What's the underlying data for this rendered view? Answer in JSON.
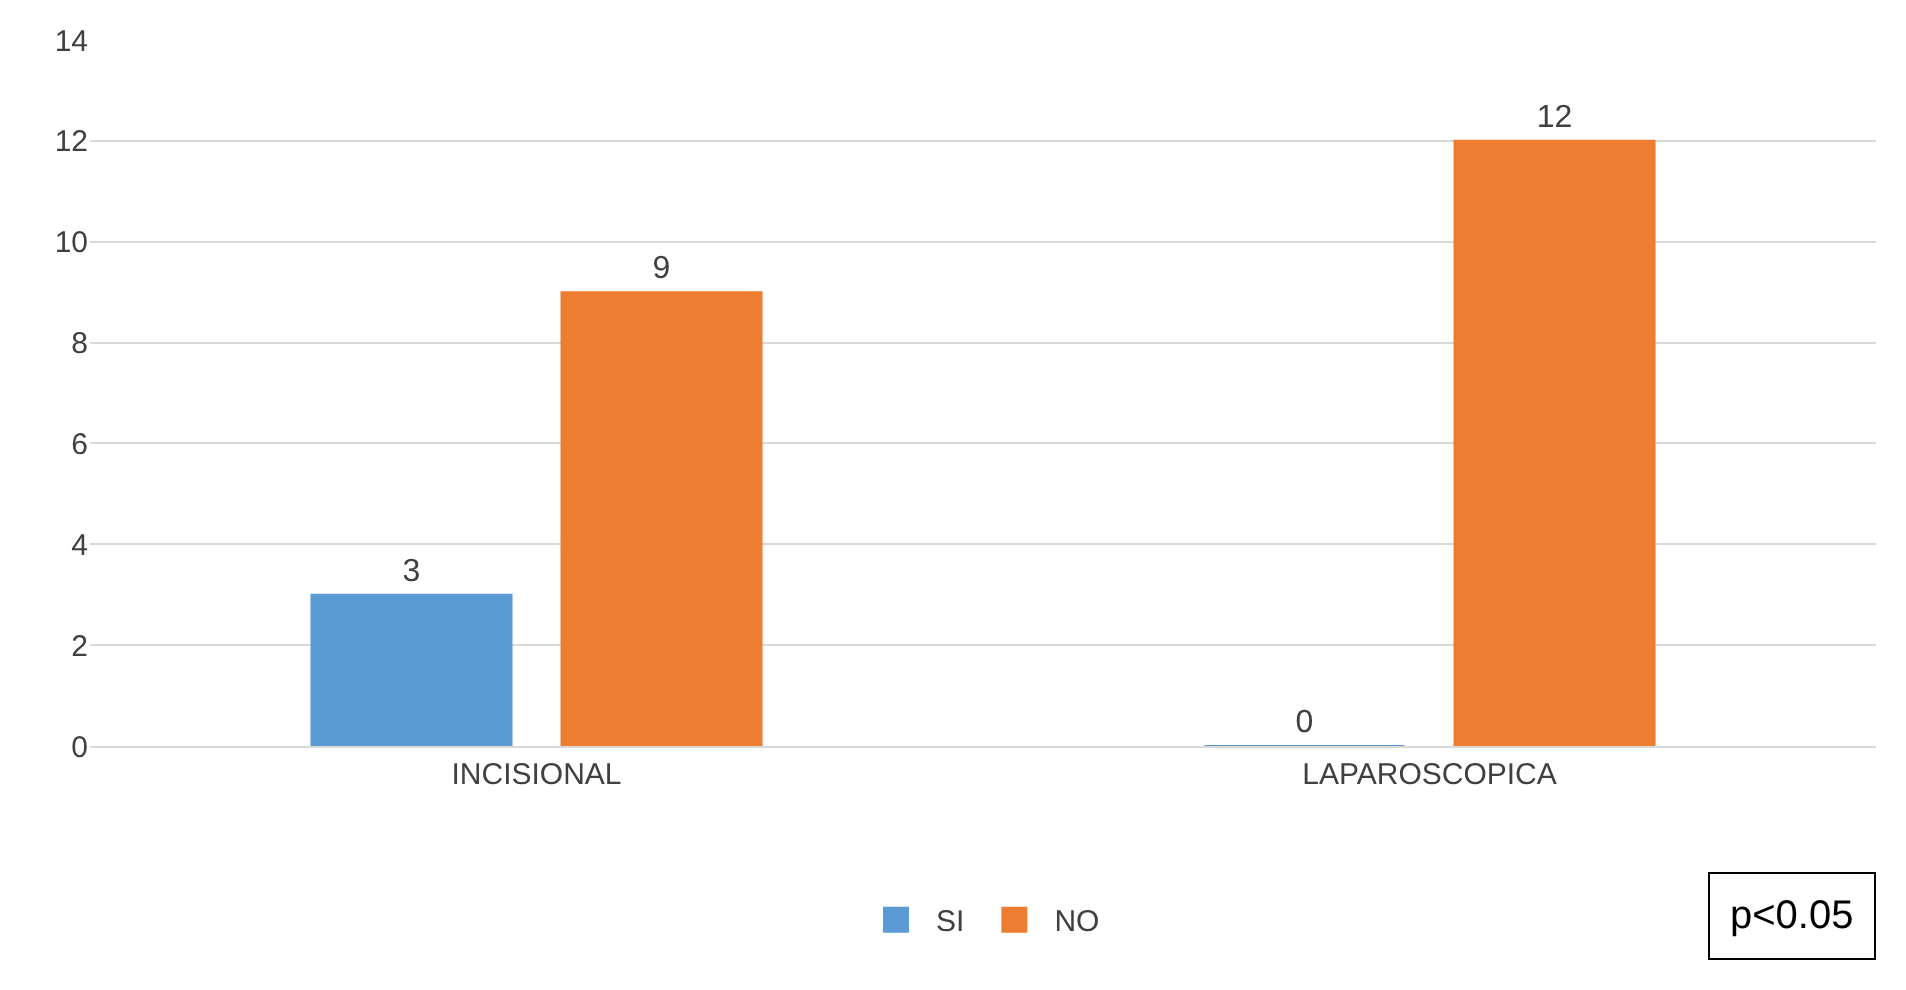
{
  "chart_data": {
    "type": "bar",
    "categories": [
      "INCISIONAL",
      "LAPAROSCOPICA"
    ],
    "series": [
      {
        "name": "SI",
        "color": "#5b9bd5",
        "values": [
          3,
          0
        ]
      },
      {
        "name": "NO",
        "color": "#ed7d31",
        "values": [
          9,
          12
        ]
      }
    ],
    "ylim": [
      0,
      14
    ],
    "yticks": [
      0,
      2,
      4,
      6,
      8,
      10,
      12,
      14
    ],
    "grid": "y",
    "legend": "bottom",
    "data_labels": true,
    "annotations": [
      "p<0.05"
    ]
  }
}
